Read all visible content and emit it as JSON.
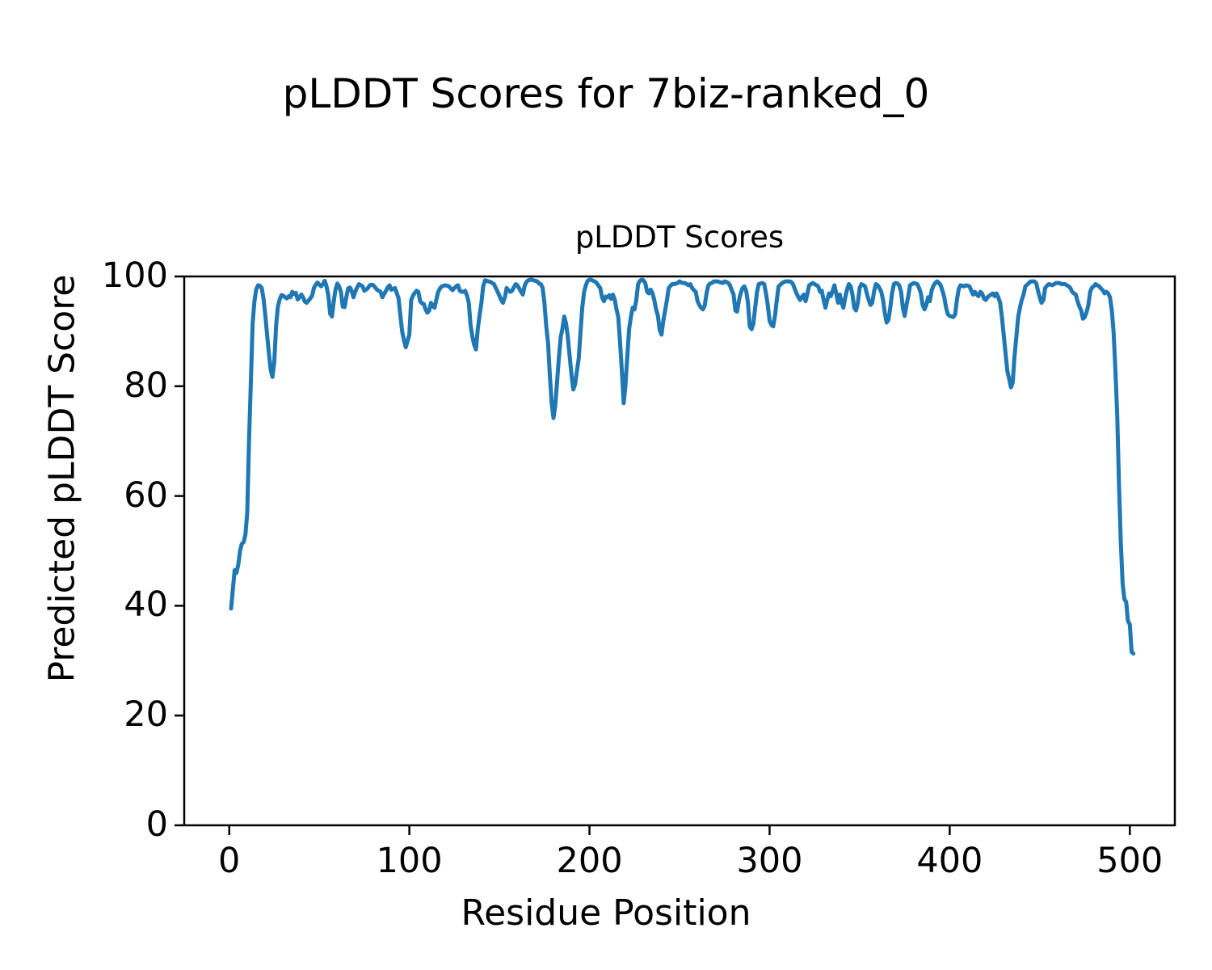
{
  "figure": {
    "suptitle": "pLDDT Scores for 7biz-ranked_0",
    "background_color": "#ffffff",
    "text_color": "#000000"
  },
  "chart_data": {
    "type": "line",
    "title": "pLDDT Scores",
    "xlabel": "Residue Position",
    "ylabel": "Predicted pLDDT Score",
    "xlim": [
      -25,
      525
    ],
    "ylim": [
      0,
      100
    ],
    "xticks": [
      0,
      100,
      200,
      300,
      400,
      500
    ],
    "yticks": [
      0,
      20,
      40,
      60,
      80,
      100
    ],
    "grid": false,
    "legend": "none",
    "line_color": "#1f77b4",
    "line_width": 5,
    "series": [
      {
        "name": "pLDDT",
        "x_start": 1,
        "y": [
          39.5,
          43,
          46.5,
          46,
          47.5,
          50,
          51.3,
          51.6,
          53,
          57,
          70,
          81,
          91.5,
          95.5,
          97.7,
          98.4,
          98.3,
          97.9,
          96,
          93,
          89.5,
          86,
          83,
          81.7,
          84.5,
          91,
          94.5,
          95.8,
          96.6,
          96.5,
          96.2,
          96,
          96.4,
          96.2,
          97.2,
          96.8,
          97,
          95.8,
          96.2,
          96.7,
          96.2,
          95.4,
          95.2,
          95.6,
          96,
          96.5,
          97.9,
          98.5,
          98.9,
          98.5,
          98.2,
          98.6,
          99.2,
          98.2,
          96.6,
          93.2,
          92.7,
          95.4,
          97.6,
          98.7,
          98.2,
          97.2,
          94.5,
          94.4,
          96.2,
          97.8,
          98,
          97.3,
          96.2,
          97.3,
          98,
          98.6,
          98.4,
          98.2,
          97.4,
          97.6,
          97.9,
          98.4,
          98.5,
          98.4,
          98,
          97.6,
          97.4,
          97.2,
          96.2,
          96.8,
          97.4,
          98,
          98.4,
          97.6,
          97.7,
          97.9,
          97,
          96,
          92.9,
          90,
          88.4,
          87.1,
          88.2,
          89.4,
          95.7,
          96.5,
          97,
          97.4,
          97.2,
          95.5,
          95.1,
          95,
          94,
          93.4,
          93.8,
          95.2,
          94.6,
          94.3,
          95.8,
          97.2,
          97.8,
          98.2,
          98.3,
          98.4,
          98.3,
          98.2,
          97.8,
          97.5,
          97.9,
          98.2,
          98.4,
          97.4,
          97.2,
          97.2,
          97.4,
          96.5,
          95.2,
          91.1,
          89,
          87.5,
          86.7,
          90.4,
          93,
          95.2,
          98.2,
          99.3,
          99.2,
          99.1,
          99,
          98.8,
          98.6,
          97.9,
          97.2,
          96.5,
          95.7,
          95.2,
          96.2,
          97.9,
          97.5,
          97.2,
          97.4,
          98,
          98.6,
          98.4,
          97.8,
          97.2,
          96.7,
          98.3,
          99,
          99.3,
          99.4,
          99.4,
          99.3,
          99.2,
          99.1,
          98.7,
          98.6,
          97.9,
          95.2,
          91,
          87.9,
          82,
          77,
          74.2,
          76.5,
          80.7,
          85.2,
          88.9,
          90.5,
          92.7,
          91.4,
          88.9,
          85.5,
          82.1,
          79.4,
          80.3,
          82.7,
          85,
          89.7,
          94.3,
          97.2,
          98.4,
          99.2,
          99.4,
          99.4,
          99.2,
          99.1,
          98.8,
          98.3,
          97.9,
          96.2,
          95.5,
          96.3,
          96.2,
          96.6,
          95.9,
          96.7,
          95.8,
          94,
          92.6,
          88,
          82.6,
          76.9,
          80.2,
          85.5,
          90.4,
          92.6,
          94.3,
          94,
          95.7,
          98.6,
          99.2,
          99.4,
          99.3,
          98.8,
          97.2,
          96.9,
          97.6,
          96.9,
          95.7,
          94,
          92.8,
          90.2,
          89.4,
          91.9,
          93.8,
          95.7,
          97.9,
          98.3,
          98.6,
          98.6,
          98.7,
          98.8,
          99.1,
          98.9,
          98.8,
          98.8,
          98.6,
          98.4,
          98.6,
          97.9,
          97.5,
          97.2,
          95.5,
          94.8,
          94.3,
          94,
          94.7,
          96.9,
          98.4,
          98.7,
          98.8,
          99.1,
          99.1,
          99.1,
          99,
          98.9,
          98.8,
          99.1,
          99,
          98.8,
          98.4,
          97.5,
          96.7,
          93.8,
          93.6,
          95.7,
          97,
          97.9,
          98.2,
          97.4,
          95.2,
          90.9,
          90.4,
          91.4,
          94.3,
          97.2,
          98.6,
          98.7,
          98.8,
          98.6,
          96.9,
          94.8,
          91.9,
          91.2,
          90.9,
          92.8,
          95.7,
          98.2,
          98.5,
          98.8,
          99,
          99.1,
          99.1,
          99.1,
          99,
          98.6,
          97.7,
          96.9,
          96.2,
          95.7,
          96.3,
          96.7,
          95.5,
          96.9,
          98.4,
          98.6,
          98.8,
          98.6,
          98.4,
          98.2,
          97.2,
          97.4,
          95.7,
          94.3,
          95.7,
          96.9,
          96.4,
          97.4,
          98.4,
          96.9,
          95.2,
          96.7,
          95.2,
          94.3,
          96.2,
          97.6,
          98.6,
          98.2,
          96.7,
          94.3,
          93.8,
          95.2,
          97.9,
          98.6,
          98.4,
          98.2,
          96.9,
          95.7,
          94.8,
          95.2,
          97.2,
          98.6,
          98.4,
          97.9,
          97.2,
          95.7,
          93.3,
          91.6,
          92.1,
          94.3,
          96.9,
          98.6,
          98.8,
          98.7,
          98.4,
          97.2,
          94.3,
          92.8,
          94.8,
          96.4,
          98.4,
          98.6,
          98.8,
          98.7,
          98.6,
          97.9,
          96.9,
          94.8,
          94,
          94.8,
          96.2,
          95.5,
          97.5,
          98.3,
          98.8,
          99.1,
          98.8,
          98.4,
          97.4,
          96.2,
          94.3,
          93.1,
          92.8,
          92.7,
          92.6,
          93.1,
          95.7,
          97.7,
          98.4,
          98.3,
          98.2,
          98.4,
          98.3,
          98.2,
          97.4,
          96.7,
          97.2,
          96.7,
          96.4,
          97.2,
          96.9,
          96,
          95.7,
          96.2,
          96.5,
          96.7,
          96.9,
          96.4,
          96.9,
          96.2,
          95.2,
          92.6,
          89.4,
          86,
          82.8,
          81.4,
          79.8,
          80.7,
          85.5,
          88.9,
          92.6,
          94.3,
          95.7,
          96.7,
          98.2,
          98.5,
          98.8,
          99.1,
          99.1,
          99.1,
          98.8,
          97.4,
          96.2,
          95.2,
          95.7,
          97.9,
          98.3,
          98.6,
          98.5,
          98.4,
          98.6,
          98.8,
          98.8,
          98.8,
          98.6,
          98.6,
          98.6,
          98.4,
          98.2,
          97.9,
          97.2,
          96.9,
          96.7,
          95.5,
          94.5,
          93.8,
          92.3,
          92.6,
          93.5,
          94.8,
          97.2,
          98,
          98.2,
          98.6,
          98.4,
          98.2,
          97.8,
          97.5,
          96.9,
          97.2,
          96.9,
          96.2,
          93.8,
          89.9,
          83.1,
          74.8,
          62,
          51.7,
          44,
          41.2,
          40.7,
          37.2,
          36.6,
          31.6,
          31.3
        ]
      }
    ]
  }
}
